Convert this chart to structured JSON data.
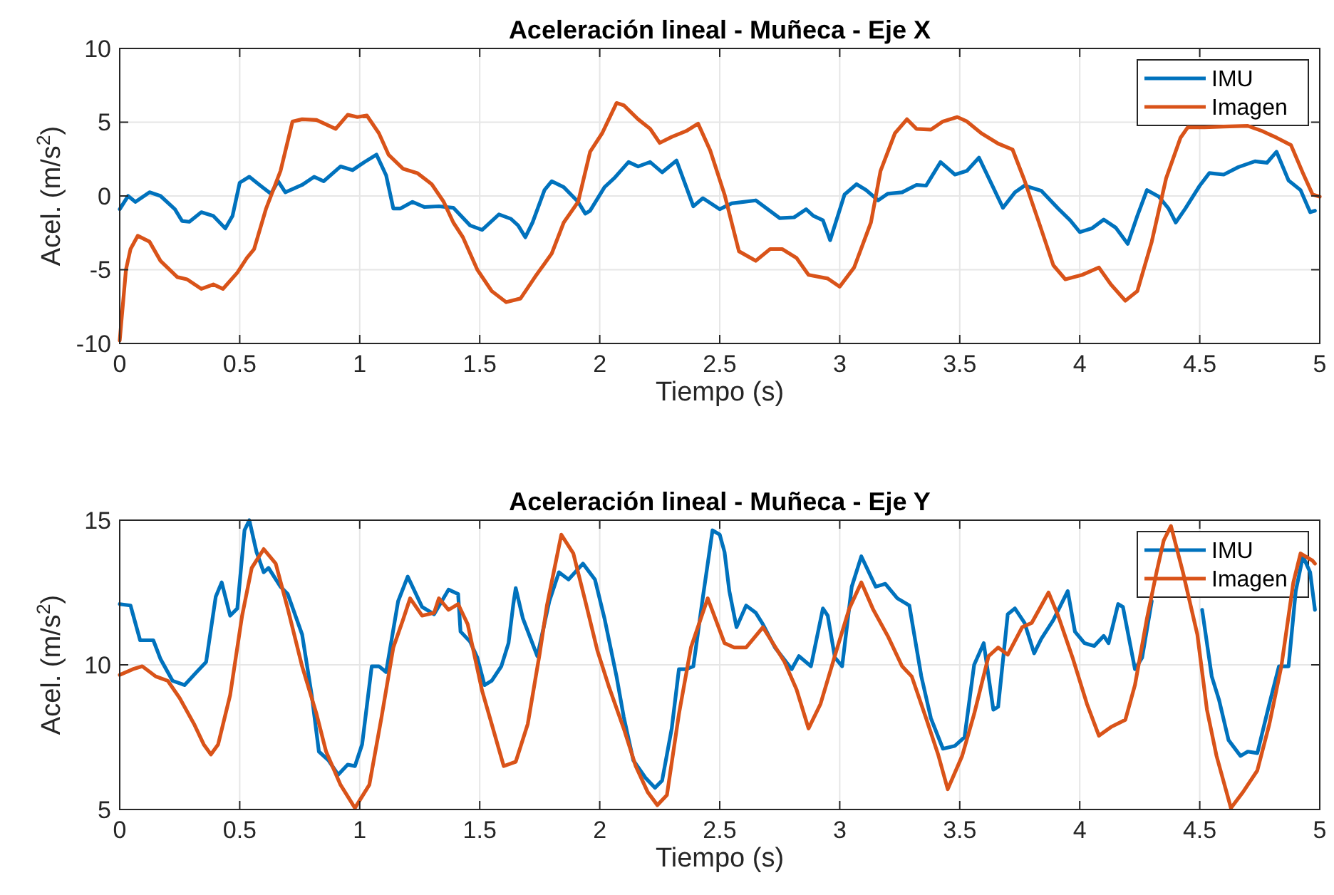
{
  "chart_data": [
    {
      "type": "line",
      "title": "Aceleración lineal - Muñeca - Eje X",
      "xlabel": "Tiempo (s)",
      "ylabel": "Acel. (m/s$^{2}$)",
      "xlim": [
        0,
        5
      ],
      "xticks": [
        0,
        0.5,
        1,
        1.5,
        2,
        2.5,
        3,
        3.5,
        4,
        4.5,
        5
      ],
      "ylim": [
        -10,
        10
      ],
      "yticks": [
        -10,
        -5,
        0,
        5,
        10
      ],
      "grid": true,
      "legend": "top right",
      "line_style": "solid",
      "series": [
        {
          "name": "IMU",
          "color": "#0072bd",
          "x": [
            0,
            0.035,
            0.065,
            0.124,
            0.17,
            0.23,
            0.26,
            0.29,
            0.34,
            0.39,
            0.44,
            0.47,
            0.5,
            0.54,
            0.59,
            0.63,
            0.66,
            0.69,
            0.76,
            0.81,
            0.85,
            0.92,
            0.97,
            1.02,
            1.07,
            1.11,
            1.14,
            1.17,
            1.22,
            1.27,
            1.33,
            1.39,
            1.46,
            1.51,
            1.58,
            1.63,
            1.66,
            1.69,
            1.72,
            1.77,
            1.8,
            1.85,
            1.91,
            1.94,
            1.96,
            2.02,
            2.06,
            2.12,
            2.16,
            2.21,
            2.26,
            2.32,
            2.39,
            2.43,
            2.5,
            2.55,
            2.65,
            2.75,
            2.81,
            2.86,
            2.89,
            2.93,
            2.96,
            3.02,
            3.07,
            3.11,
            3.16,
            3.2,
            3.26,
            3.32,
            3.36,
            3.42,
            3.48,
            3.53,
            3.58,
            3.63,
            3.68,
            3.73,
            3.77,
            3.84,
            3.91,
            3.96,
            4,
            4.05,
            4.1,
            4.15,
            4.2,
            4.24,
            4.28,
            4.33,
            4.37,
            4.4,
            4.44,
            4.5,
            4.54,
            4.6,
            4.66,
            4.73,
            4.78,
            4.82,
            4.87,
            4.92,
            4.96,
            4.98
          ],
          "values": [
            -0.9,
            0,
            -0.4,
            0.25,
            0,
            -0.9,
            -1.7,
            -1.75,
            -1.1,
            -1.35,
            -2.2,
            -1.35,
            0.9,
            1.3,
            0.65,
            0.15,
            1,
            0.25,
            0.75,
            1.3,
            1,
            2,
            1.75,
            2.3,
            2.8,
            1.4,
            -0.85,
            -0.85,
            -0.4,
            -0.75,
            -0.7,
            -0.8,
            -2,
            -2.3,
            -1.25,
            -1.55,
            -2,
            -2.8,
            -1.8,
            0.4,
            1,
            0.6,
            -0.4,
            -1.2,
            -1,
            0.6,
            1.2,
            2.3,
            2,
            2.3,
            1.6,
            2.4,
            -0.7,
            -0.15,
            -0.9,
            -0.5,
            -0.3,
            -1.5,
            -1.45,
            -0.9,
            -1.35,
            -1.65,
            -3,
            0.1,
            0.8,
            0.4,
            -0.3,
            0.15,
            0.25,
            0.75,
            0.7,
            2.3,
            1.45,
            1.7,
            2.6,
            0.9,
            -0.8,
            0.25,
            0.7,
            0.35,
            -0.85,
            -1.65,
            -2.45,
            -2.2,
            -1.6,
            -2.15,
            -3.25,
            -1.35,
            0.4,
            -0.05,
            -0.85,
            -1.8,
            -0.85,
            0.7,
            1.55,
            1.45,
            1.95,
            2.35,
            2.25,
            3,
            1.05,
            0.4,
            -1.1,
            -1
          ]
        },
        {
          "name": "Imagen",
          "color": "#d95319",
          "x": [
            0,
            0.026,
            0.045,
            0.075,
            0.124,
            0.17,
            0.24,
            0.28,
            0.34,
            0.39,
            0.43,
            0.49,
            0.53,
            0.56,
            0.61,
            0.67,
            0.72,
            0.76,
            0.82,
            0.9,
            0.95,
            0.99,
            1.03,
            1.08,
            1.12,
            1.18,
            1.24,
            1.3,
            1.35,
            1.39,
            1.43,
            1.49,
            1.55,
            1.61,
            1.67,
            1.73,
            1.8,
            1.85,
            1.91,
            1.96,
            2.01,
            2.07,
            2.1,
            2.16,
            2.21,
            2.25,
            2.3,
            2.36,
            2.41,
            2.46,
            2.52,
            2.58,
            2.65,
            2.71,
            2.76,
            2.82,
            2.87,
            2.95,
            3,
            3.06,
            3.13,
            3.17,
            3.23,
            3.28,
            3.32,
            3.38,
            3.43,
            3.49,
            3.53,
            3.59,
            3.66,
            3.72,
            3.77,
            3.83,
            3.89,
            3.94,
            4.01,
            4.08,
            4.13,
            4.19,
            4.24,
            4.3,
            4.36,
            4.42,
            4.45,
            4.52,
            4.6,
            4.7,
            4.76,
            4.82,
            4.88,
            4.93,
            4.97,
            5
          ],
          "values": [
            -9.8,
            -5,
            -3.6,
            -2.7,
            -3.1,
            -4.4,
            -5.5,
            -5.65,
            -6.3,
            -6,
            -6.3,
            -5.2,
            -4.2,
            -3.6,
            -0.85,
            1.7,
            5.05,
            5.2,
            5.15,
            4.55,
            5.5,
            5.35,
            5.45,
            4.25,
            2.8,
            1.85,
            1.55,
            0.8,
            -0.4,
            -1.8,
            -2.8,
            -5,
            -6.45,
            -7.2,
            -6.95,
            -5.5,
            -3.9,
            -1.8,
            -0.4,
            3,
            4.25,
            6.3,
            6.15,
            5.2,
            4.55,
            3.6,
            4,
            4.4,
            4.9,
            3.1,
            0.1,
            -3.75,
            -4.4,
            -3.6,
            -3.6,
            -4.2,
            -5.35,
            -5.6,
            -6.15,
            -4.85,
            -1.8,
            1.7,
            4.25,
            5.2,
            4.55,
            4.5,
            5.05,
            5.35,
            5.05,
            4.25,
            3.55,
            3.15,
            1.05,
            -1.8,
            -4.7,
            -5.65,
            -5.35,
            -4.85,
            -6,
            -7.1,
            -6.45,
            -3.1,
            1.2,
            3.95,
            4.65,
            4.65,
            4.7,
            4.75,
            4.4,
            3.95,
            3.45,
            1.55,
            0.1,
            -0.05
          ]
        }
      ]
    },
    {
      "type": "line",
      "title": "Aceleración lineal - Muñeca - Eje Y",
      "xlabel": "Tiempo (s)",
      "ylabel": "Acel. (m/s$^{2}$)",
      "xlim": [
        0,
        5
      ],
      "xticks": [
        0,
        0.5,
        1,
        1.5,
        2,
        2.5,
        3,
        3.5,
        4,
        4.5,
        5
      ],
      "ylim": [
        5,
        15
      ],
      "yticks": [
        5,
        10,
        15
      ],
      "grid": true,
      "legend": "top right",
      "line_style": "solid",
      "series": [
        {
          "name": "IMU",
          "color": "#0072bd",
          "x": [
            0,
            0.045,
            0.085,
            0.14,
            0.17,
            0.22,
            0.27,
            0.32,
            0.36,
            0.4,
            0.425,
            0.46,
            0.49,
            0.52,
            0.54,
            0.57,
            0.6,
            0.62,
            0.67,
            0.7,
            0.76,
            0.8,
            0.83,
            0.87,
            0.91,
            0.95,
            0.98,
            1.01,
            1.05,
            1.08,
            1.11,
            1.16,
            1.2,
            1.26,
            1.31,
            1.37,
            1.41,
            1.42,
            1.46,
            1.49,
            1.52,
            1.55,
            1.59,
            1.62,
            1.64,
            1.65,
            1.68,
            1.74,
            1.79,
            1.83,
            1.87,
            1.93,
            1.98,
            2.02,
            2.07,
            2.1,
            2.14,
            2.19,
            2.23,
            2.26,
            2.3,
            2.33,
            2.36,
            2.39,
            2.43,
            2.47,
            2.5,
            2.52,
            2.54,
            2.57,
            2.61,
            2.65,
            2.68,
            2.73,
            2.8,
            2.83,
            2.88,
            2.93,
            2.95,
            2.98,
            3.01,
            3.05,
            3.09,
            3.15,
            3.19,
            3.24,
            3.29,
            3.34,
            3.38,
            3.43,
            3.48,
            3.52,
            3.56,
            3.6,
            3.64,
            3.66,
            3.7,
            3.73,
            3.77,
            3.81,
            3.84,
            3.89,
            3.95,
            3.98,
            4.02,
            4.06,
            4.1,
            4.12,
            4.16,
            4.18,
            4.23,
            4.26,
            4.3,
            4.37,
            4.45,
            4.51,
            4.55,
            4.58,
            4.62,
            4.67,
            4.7,
            4.74,
            4.79,
            4.83,
            4.87,
            4.9,
            4.93,
            4.96,
            4.98
          ],
          "values": [
            12.1,
            12.05,
            10.85,
            10.85,
            10.2,
            9.45,
            9.3,
            9.75,
            10.1,
            12.35,
            12.85,
            11.7,
            11.95,
            14.65,
            15,
            13.9,
            13.2,
            13.35,
            12.7,
            12.45,
            11.05,
            8.95,
            7,
            6.7,
            6.2,
            6.55,
            6.5,
            7.25,
            9.95,
            9.95,
            9.75,
            12.2,
            13.05,
            12,
            11.75,
            12.6,
            12.45,
            11.15,
            10.8,
            10.25,
            9.3,
            9.45,
            9.95,
            10.75,
            12.1,
            12.65,
            11.6,
            10.3,
            12.2,
            13.2,
            12.95,
            13.5,
            12.95,
            11.6,
            9.6,
            8.2,
            6.7,
            6.1,
            5.75,
            6,
            7.8,
            9.85,
            9.85,
            9.95,
            12.35,
            14.65,
            14.5,
            13.9,
            12.55,
            11.3,
            12.05,
            11.8,
            11.4,
            10.6,
            9.85,
            10.3,
            9.95,
            11.95,
            11.7,
            10.25,
            9.95,
            12.7,
            13.75,
            12.7,
            12.8,
            12.3,
            12.05,
            9.6,
            8.15,
            7.1,
            7.2,
            7.5,
            10,
            10.75,
            8.45,
            8.55,
            11.75,
            11.95,
            11.45,
            10.4,
            10.9,
            11.55,
            12.55,
            11.15,
            10.75,
            10.65,
            11,
            10.75,
            12.1,
            12,
            9.85,
            10.25,
            12.2,
            null,
            null,
            11.9,
            9.6,
            8.8,
            7.4,
            6.85,
            7,
            6.95,
            8.65,
            9.95,
            9.95,
            12.55,
            13.75,
            13.2,
            11.9
          ]
        },
        {
          "name": "Imagen",
          "color": "#d95319",
          "x": [
            0,
            0.055,
            0.094,
            0.15,
            0.2,
            0.25,
            0.31,
            0.35,
            0.38,
            0.41,
            0.46,
            0.51,
            0.55,
            0.6,
            0.65,
            0.7,
            0.76,
            0.82,
            0.86,
            0.92,
            0.98,
            1.04,
            1.09,
            1.14,
            1.18,
            1.21,
            1.26,
            1.31,
            1.33,
            1.37,
            1.41,
            1.45,
            1.51,
            1.55,
            1.6,
            1.65,
            1.7,
            1.75,
            1.78,
            1.84,
            1.89,
            1.94,
            1.99,
            2.04,
            2.1,
            2.15,
            2.2,
            2.24,
            2.28,
            2.33,
            2.38,
            2.45,
            2.52,
            2.56,
            2.61,
            2.68,
            2.77,
            2.82,
            2.87,
            2.92,
            2.99,
            3.04,
            3.09,
            3.14,
            3.2,
            3.26,
            3.3,
            3.36,
            3.41,
            3.45,
            3.51,
            3.56,
            3.62,
            3.66,
            3.7,
            3.76,
            3.8,
            3.87,
            3.91,
            3.97,
            4.03,
            4.08,
            4.13,
            4.19,
            4.23,
            4.28,
            4.32,
            4.35,
            4.38,
            4.43,
            4.49,
            4.53,
            4.57,
            4.63,
            4.68,
            4.74,
            4.79,
            4.84,
            4.89,
            4.92,
            4.97,
            4.98
          ],
          "values": [
            9.65,
            9.85,
            9.95,
            9.6,
            9.45,
            8.85,
            7.95,
            7.25,
            6.9,
            7.25,
            8.95,
            11.7,
            13.35,
            14,
            13.5,
            11.95,
            9.95,
            8.3,
            7,
            5.85,
            5.05,
            5.85,
            8.15,
            10.6,
            11.55,
            12.3,
            11.7,
            11.8,
            12.3,
            11.9,
            12.1,
            11.4,
            9.1,
            7.95,
            6.5,
            6.65,
            7.95,
            10.4,
            12.05,
            14.5,
            13.85,
            12.2,
            10.5,
            9.2,
            7.8,
            6.5,
            5.6,
            5.15,
            5.5,
            8.3,
            10.6,
            12.3,
            10.75,
            10.6,
            10.6,
            11.3,
            10.1,
            9.15,
            7.8,
            8.65,
            10.6,
            11.95,
            12.85,
            11.9,
            11,
            9.95,
            9.6,
            8.15,
            6.9,
            5.7,
            6.85,
            8.3,
            10.3,
            10.6,
            10.35,
            11.3,
            11.45,
            12.5,
            11.7,
            10.25,
            8.65,
            7.55,
            7.85,
            8.1,
            9.3,
            11.6,
            13.2,
            14.3,
            14.8,
            13.2,
            11.05,
            8.45,
            6.85,
            5.05,
            5.6,
            6.35,
            7.95,
            9.95,
            12.85,
            13.85,
            13.6,
            13.5
          ]
        }
      ]
    }
  ]
}
